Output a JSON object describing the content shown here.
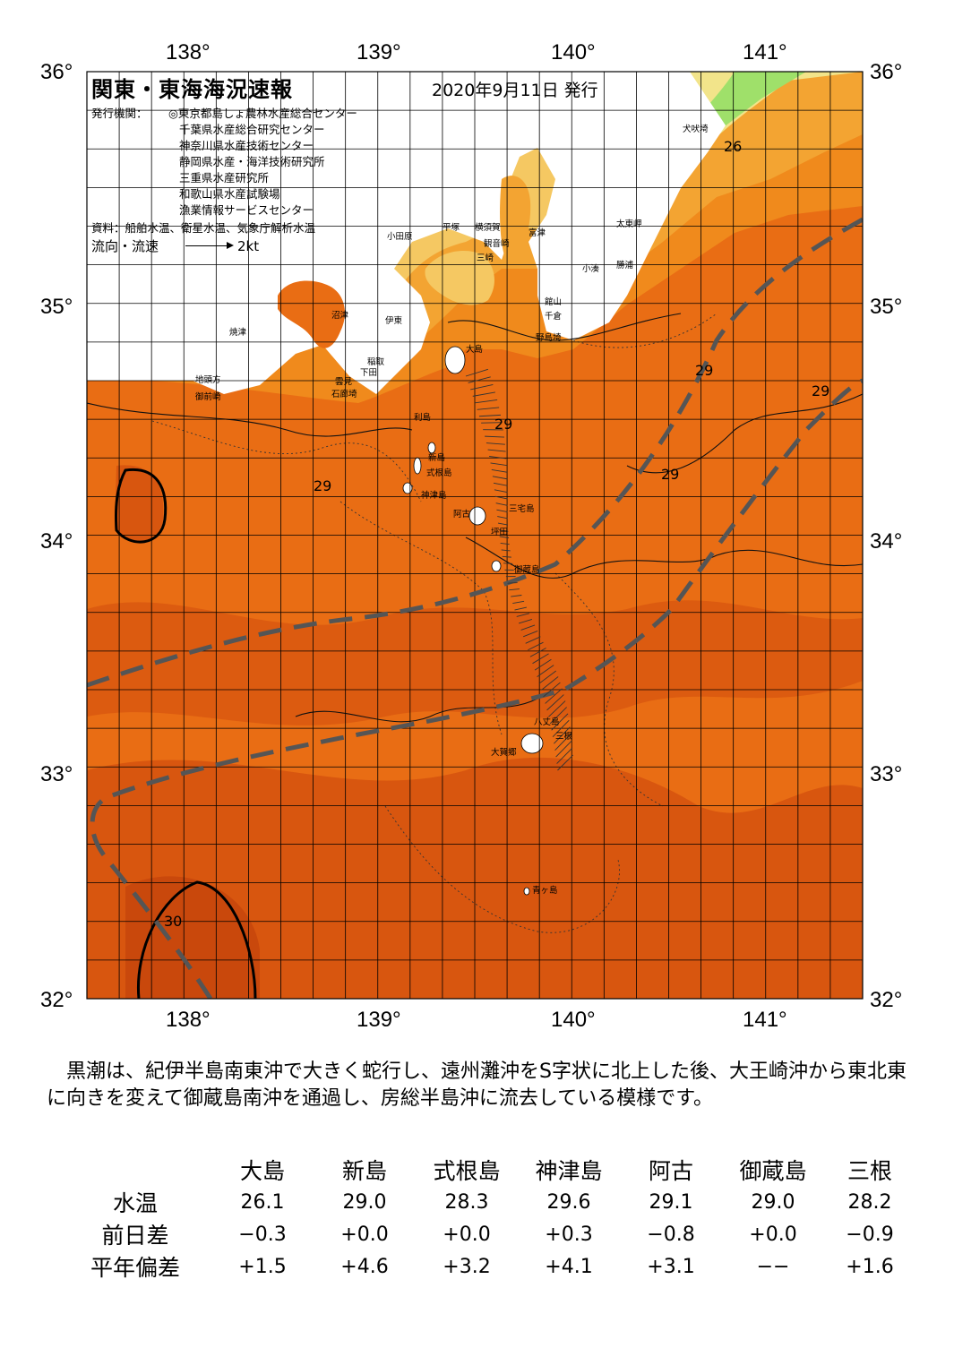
{
  "title": "関東・東海海況速報",
  "date": "2020年9月11日 発行",
  "issuer_label": "発行機関：",
  "issuers": [
    "◎東京都島しょ農林水産総合センター",
    "千葉県水産総合研究センター",
    "神奈川県水産技術センター",
    "静岡県水産・海洋技術研究所",
    "三重県水産研究所",
    "和歌山県水産試験場",
    "漁業情報サービスセンター"
  ],
  "materials": "資料：船舶水温、衛星水温、気象庁解析水温",
  "flow_legend": {
    "label": "流向・流速",
    "scale": "2kt"
  },
  "axes": {
    "lon_labels": [
      "138°",
      "139°",
      "140°",
      "141°"
    ],
    "lat_labels": [
      "36°",
      "35°",
      "34°",
      "33°",
      "32°"
    ]
  },
  "isotherm_labels": [
    "26",
    "29",
    "29",
    "29",
    "29",
    "29",
    "30"
  ],
  "place_names": [
    "犬吠埼",
    "太東岬",
    "小湊",
    "勝浦",
    "富津",
    "館山",
    "千倉",
    "野島埼",
    "横須賀",
    "観音崎",
    "三崎",
    "平塚",
    "小田原",
    "沼津",
    "伊東",
    "稲取",
    "下田",
    "雲見",
    "石廊埼",
    "焼津",
    "地頭方",
    "御前崎",
    "大島",
    "利島",
    "新島",
    "式根島",
    "神津島",
    "三宅島",
    "阿古",
    "坪田",
    "御蔵島",
    "八丈島",
    "三根",
    "大賀郷",
    "青ヶ島"
  ],
  "colors": {
    "water_warm": "#d8560f",
    "water_mid": "#e96d14",
    "water_cool": "#f08a1c",
    "water_cooler": "#f3a432",
    "water_cold": "#f5c862",
    "water_coldest": "#f2e48a",
    "water_green": "#9fe06a",
    "water_deep": "#c9480c",
    "kuroshio": "#555555",
    "land": "#ffffff"
  },
  "description": "黒潮は、紀伊半島南東沖で大きく蛇行し、遠州灘沖をS字状に北上した後、大王崎沖から東北東に向きを変えて御蔵島南沖を通過し、房総半島沖に流去している模様です。",
  "table": {
    "stations": [
      "大島",
      "新島",
      "式根島",
      "神津島",
      "阿古",
      "御蔵島",
      "三根"
    ],
    "rows": [
      {
        "label": "水温",
        "values": [
          "26.1",
          "29.0",
          "28.3",
          "29.6",
          "29.1",
          "29.0",
          "28.2"
        ]
      },
      {
        "label": "前日差",
        "values": [
          "−0.3",
          "+0.0",
          "+0.0",
          "+0.3",
          "−0.8",
          "+0.0",
          "−0.9"
        ]
      },
      {
        "label": "平年偏差",
        "values": [
          "+1.5",
          "+4.6",
          "+3.2",
          "+4.1",
          "+3.1",
          "−−",
          "+1.6"
        ]
      }
    ]
  }
}
